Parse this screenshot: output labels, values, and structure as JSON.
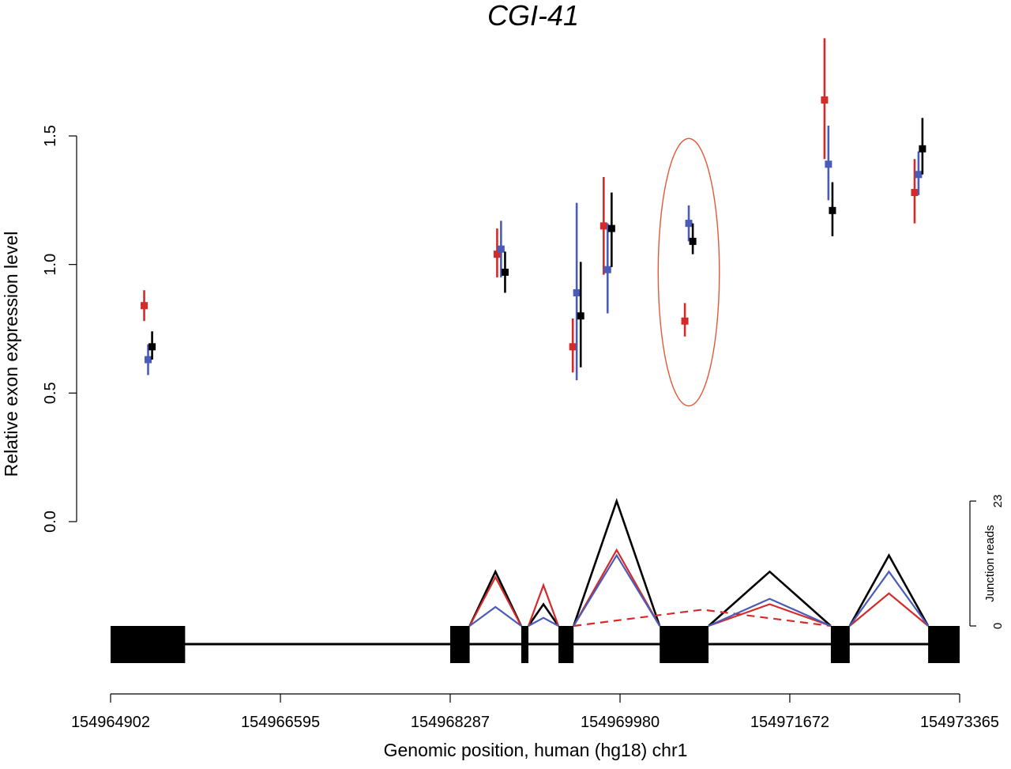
{
  "chart_data": {
    "type": "scatter",
    "title": "CGI-41",
    "xlabel": "Genomic position, human (hg18) chr1",
    "ylabel": "Relative exon expression level",
    "xlim": [
      154964902,
      154973365
    ],
    "ylim": [
      0,
      1.9
    ],
    "x_ticks": [
      "154964902",
      "154966595",
      "154968287",
      "154969980",
      "154971672",
      "154973365"
    ],
    "y_ticks": [
      "0.0",
      "0.5",
      "1.0",
      "1.5"
    ],
    "colors": {
      "red": "#d42a2a",
      "blue": "#4a5cb8",
      "black": "#000000",
      "ellipse": "#e05a3a"
    },
    "series": [
      {
        "color": "red",
        "points": [
          {
            "x": 154965237,
            "y": 0.84,
            "lo": 0.78,
            "hi": 0.9
          },
          {
            "x": 154968755,
            "y": 1.04,
            "lo": 0.95,
            "hi": 1.14
          },
          {
            "x": 154969509,
            "y": 0.68,
            "lo": 0.58,
            "hi": 0.79
          },
          {
            "x": 154969817,
            "y": 1.15,
            "lo": 0.96,
            "hi": 1.34
          },
          {
            "x": 154970626,
            "y": 0.78,
            "lo": 0.72,
            "hi": 0.85
          },
          {
            "x": 154972018,
            "y": 1.64,
            "lo": 1.41,
            "hi": 1.88
          },
          {
            "x": 154972916,
            "y": 1.28,
            "lo": 1.16,
            "hi": 1.41
          }
        ]
      },
      {
        "color": "blue",
        "points": [
          {
            "x": 154965276,
            "y": 0.63,
            "lo": 0.57,
            "hi": 0.69
          },
          {
            "x": 154968794,
            "y": 1.06,
            "lo": 0.95,
            "hi": 1.17
          },
          {
            "x": 154969548,
            "y": 0.89,
            "lo": 0.55,
            "hi": 1.24
          },
          {
            "x": 154969856,
            "y": 0.98,
            "lo": 0.81,
            "hi": 1.16
          },
          {
            "x": 154970665,
            "y": 1.16,
            "lo": 1.09,
            "hi": 1.23
          },
          {
            "x": 154972057,
            "y": 1.39,
            "lo": 1.25,
            "hi": 1.54
          },
          {
            "x": 154972955,
            "y": 1.35,
            "lo": 1.27,
            "hi": 1.44
          }
        ]
      },
      {
        "color": "black",
        "points": [
          {
            "x": 154965316,
            "y": 0.68,
            "lo": 0.63,
            "hi": 0.74
          },
          {
            "x": 154968834,
            "y": 0.97,
            "lo": 0.89,
            "hi": 1.05
          },
          {
            "x": 154969588,
            "y": 0.8,
            "lo": 0.6,
            "hi": 1.01
          },
          {
            "x": 154969896,
            "y": 1.14,
            "lo": 0.99,
            "hi": 1.28
          },
          {
            "x": 154970705,
            "y": 1.09,
            "lo": 1.04,
            "hi": 1.16
          },
          {
            "x": 154972097,
            "y": 1.21,
            "lo": 1.11,
            "hi": 1.32
          },
          {
            "x": 154972994,
            "y": 1.45,
            "lo": 1.35,
            "hi": 1.57
          }
        ]
      }
    ],
    "highlight_ellipse": {
      "x": 154970665,
      "y": 0.97,
      "x_radius": 305,
      "y_radius": 0.52
    },
    "exons": [
      {
        "start": 154964902,
        "end": 154965645
      },
      {
        "start": 154968287,
        "end": 154968481
      },
      {
        "start": 154968995,
        "end": 154969067
      },
      {
        "start": 154969366,
        "end": 154969517
      },
      {
        "start": 154970375,
        "end": 154970862
      },
      {
        "start": 154972081,
        "end": 154972269
      },
      {
        "start": 154973051,
        "end": 154973365
      }
    ],
    "junction_axis": {
      "label": "Junction reads",
      "ticks": [
        "0",
        "23"
      ],
      "range": [
        0,
        23
      ]
    },
    "junctions": [
      {
        "color": "black",
        "dashed": false,
        "arcs": [
          {
            "from": 154968481,
            "to": 154968995,
            "peak": 10
          },
          {
            "from": 154969067,
            "to": 154969366,
            "peak": 4
          },
          {
            "from": 154969517,
            "to": 154970375,
            "peak": 23
          },
          {
            "from": 154970862,
            "to": 154972081,
            "peak": 10
          },
          {
            "from": 154972269,
            "to": 154973051,
            "peak": 13
          }
        ]
      },
      {
        "color": "red",
        "dashed": false,
        "arcs": [
          {
            "from": 154968481,
            "to": 154968995,
            "peak": 9
          },
          {
            "from": 154969067,
            "to": 154969366,
            "peak": 7.5
          },
          {
            "from": 154969517,
            "to": 154970375,
            "peak": 14
          },
          {
            "from": 154970862,
            "to": 154972081,
            "peak": 4
          },
          {
            "from": 154972269,
            "to": 154973051,
            "peak": 6
          }
        ]
      },
      {
        "color": "red",
        "dashed": true,
        "arcs": [
          {
            "from": 154969517,
            "to": 154972081,
            "peak": 3
          }
        ]
      },
      {
        "color": "blue",
        "dashed": false,
        "arcs": [
          {
            "from": 154968481,
            "to": 154968995,
            "peak": 3.5
          },
          {
            "from": 154969067,
            "to": 154969366,
            "peak": 1.5
          },
          {
            "from": 154969517,
            "to": 154970375,
            "peak": 13
          },
          {
            "from": 154970862,
            "to": 154972081,
            "peak": 5
          },
          {
            "from": 154972269,
            "to": 154973051,
            "peak": 10
          }
        ]
      }
    ]
  }
}
